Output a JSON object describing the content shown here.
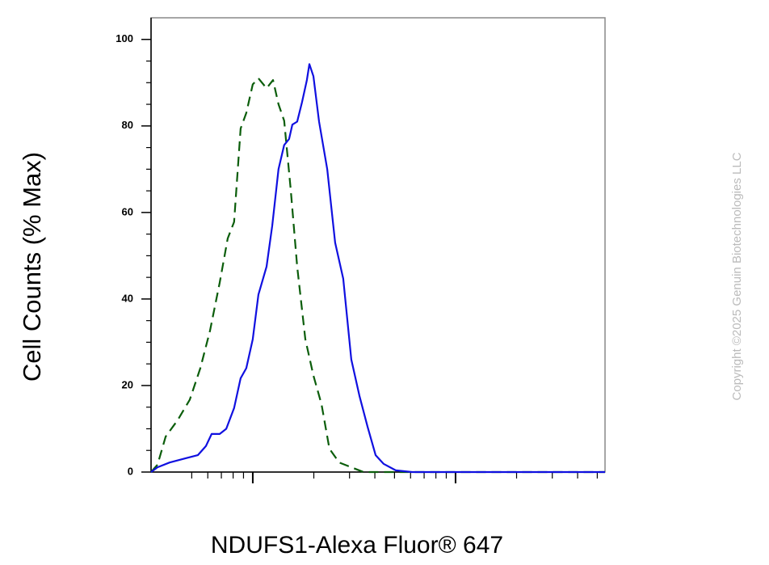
{
  "chart_data": {
    "type": "line",
    "xlabel": "NDUFS1-Alexa Fluor® 647",
    "ylabel": "Cell Counts (% Max)",
    "watermark": "Copyright ©2025 Genuin Biotechnologies LLC",
    "xscale": "log",
    "xlim": [
      31.5,
      5460
    ],
    "ylim": [
      0,
      105
    ],
    "xticks": [
      100,
      1000
    ],
    "xminor_ticks": [
      50,
      60,
      70,
      80,
      90,
      200,
      300,
      400,
      500,
      600,
      700,
      800,
      900,
      2000,
      3000,
      4000,
      5000
    ],
    "yticks": [
      0,
      20,
      40,
      60,
      80,
      100
    ],
    "yminor_ticks": [
      5,
      10,
      15,
      25,
      30,
      35,
      45,
      50,
      55,
      65,
      70,
      75,
      85,
      90,
      95
    ],
    "series": [
      {
        "color": "#1010e0",
        "dash": false,
        "x": [
          31.5,
          33.9,
          38.9,
          46.7,
          53.6,
          58.7,
          62.7,
          68.7,
          74.0,
          80.9,
          87.1,
          92.9,
          100,
          106.6,
          116.9,
          124.7,
          134,
          142.9,
          151,
          156.7,
          165.6,
          175,
          184.9,
          190.1,
          199,
          212.3,
          232.8,
          254.7,
          279.3,
          306.2,
          335.7,
          368.1,
          403.6,
          441.6,
          507,
          609.5,
          5460
        ],
        "values": [
          0,
          1.1,
          2.2,
          3.2,
          3.9,
          6,
          8.8,
          8.8,
          10,
          14.8,
          21.7,
          24,
          30.7,
          41,
          47.5,
          56.9,
          70,
          75.6,
          77,
          80.3,
          81,
          85.5,
          90.6,
          94.3,
          91.5,
          81,
          70,
          53,
          44.7,
          26,
          17.6,
          10.5,
          3.9,
          1.9,
          0.4,
          0,
          0
        ]
      },
      {
        "color": "#0b5d0b",
        "dash": true,
        "x": [
          31.5,
          33.9,
          37.2,
          42.6,
          48.9,
          55.1,
          61.5,
          68.7,
          75.2,
          80.9,
          87.1,
          92.9,
          100,
          106.6,
          116.9,
          125.9,
          134,
          142.9,
          153.8,
          165.6,
          181.6,
          199,
          218.3,
          238.8,
          266.7,
          306.2,
          351.6,
          5460
        ],
        "values": [
          0,
          1.7,
          8.2,
          12,
          16.7,
          24,
          32.6,
          43.8,
          54,
          57.8,
          79.4,
          83,
          89.6,
          91,
          88.7,
          90.6,
          85,
          81.2,
          65.3,
          47.5,
          30.7,
          22.3,
          15.7,
          5.4,
          2.2,
          1.1,
          0,
          0
        ]
      }
    ]
  }
}
